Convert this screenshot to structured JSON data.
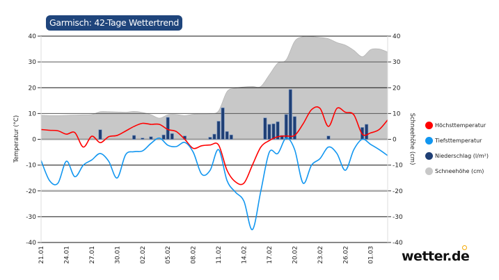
{
  "title": "Garmisch: 42-Tage Wettertrend",
  "brand": "wetter.de",
  "legend": [
    {
      "label": "Höchsttemperatur",
      "color": "#ff0000"
    },
    {
      "label": "Tiefsttemperatur",
      "color": "#1196f0"
    },
    {
      "label": "Niederschlag (l/m²)",
      "color": "#1f3f75"
    },
    {
      "label": "Schneehöhe (cm)",
      "color": "#c8c8c8"
    }
  ],
  "chart_data": {
    "type": "line",
    "ylabel": "Temperatur (°C)",
    "y2label": "Schneehöhe (cm)",
    "ylim": [
      -40,
      40
    ],
    "y2lim": [
      -40,
      40
    ],
    "yticks": [
      "40",
      "30",
      "20",
      "10",
      "0",
      "-10",
      "-20",
      "-30",
      "-40"
    ],
    "xtick_labels": [
      "21.01",
      "24.01",
      "27.01",
      "30.01",
      "02.02",
      "05.02",
      "08.02",
      "11.02",
      "14.02",
      "17.02",
      "20.02",
      "23.02",
      "26.02",
      "01.03"
    ],
    "x": [
      "21.01",
      "22.01",
      "23.01",
      "24.01",
      "25.01",
      "26.01",
      "27.01",
      "28.01",
      "29.01",
      "30.01",
      "31.01",
      "01.02",
      "02.02",
      "03.02",
      "04.02",
      "05.02",
      "06.02",
      "07.02",
      "08.02",
      "09.02",
      "10.02",
      "11.02",
      "12.02",
      "13.02",
      "14.02",
      "15.02",
      "16.02",
      "17.02",
      "18.02",
      "19.02",
      "20.02",
      "21.02",
      "22.02",
      "23.02",
      "24.02",
      "25.02",
      "26.02",
      "27.02",
      "28.02",
      "01.03",
      "02.03",
      "03.03"
    ],
    "series": [
      {
        "name": "Höchsttemperatur",
        "type": "line",
        "color": "#ff0000",
        "values": [
          3.8,
          3.5,
          3.3,
          2,
          2.6,
          -3,
          1.2,
          -1.3,
          1,
          1.5,
          3.2,
          5,
          6.2,
          5.8,
          5.8,
          3.8,
          3,
          0,
          -3.5,
          -2.5,
          -2.2,
          -2.2,
          -12,
          -16.5,
          -17,
          -10,
          -3,
          -0.5,
          1,
          1.3,
          1.5,
          6,
          11.5,
          12,
          5,
          12,
          10.5,
          9.5,
          2,
          2.5,
          3.8,
          7.5
        ]
      },
      {
        "name": "Tiefsttemperatur",
        "type": "line",
        "color": "#1196f0",
        "values": [
          -8.2,
          -16,
          -17,
          -8.5,
          -14.5,
          -10,
          -8,
          -5.5,
          -8.5,
          -15,
          -6,
          -4.8,
          -4.5,
          -1.6,
          0.5,
          -2.3,
          -2.8,
          -1.2,
          -5,
          -13.5,
          -12,
          -4,
          -16,
          -20.5,
          -24,
          -35,
          -20,
          -5,
          -5.5,
          0.5,
          -4,
          -17,
          -10,
          -7.5,
          -3,
          -5.5,
          -12,
          -4,
          0,
          -2,
          -4,
          -6.3
        ]
      },
      {
        "name": "Schneehöhe (cm)",
        "type": "area",
        "color": "#c8c8c8",
        "values": [
          9.3,
          9.2,
          9.2,
          9.3,
          9.4,
          9.5,
          9.6,
          10.7,
          10.7,
          10.6,
          10.5,
          10.8,
          10.4,
          9.5,
          8.2,
          9.5,
          9.6,
          9.2,
          9.7,
          9.8,
          9.9,
          11,
          18.5,
          19.8,
          20.3,
          20.5,
          20.5,
          25,
          29.5,
          30.8,
          38,
          39.8,
          39.8,
          39.5,
          39,
          37.5,
          36.5,
          34.5,
          32,
          34.8,
          35,
          33.8
        ]
      },
      {
        "name": "Niederschlag (l/m²)",
        "type": "bar",
        "color": "#1f3f75",
        "points": [
          {
            "time": "28.01 00:00",
            "value": 3.7
          },
          {
            "time": "01.02 00:00",
            "value": 1.5
          },
          {
            "time": "02.02 00:00",
            "value": 0.5
          },
          {
            "time": "03.02 00:00",
            "value": 1
          },
          {
            "time": "04.02 12:00",
            "value": 1.7
          },
          {
            "time": "05.02 00:00",
            "value": 8.5
          },
          {
            "time": "05.02 12:00",
            "value": 2.2
          },
          {
            "time": "07.02 00:00",
            "value": 1.3
          },
          {
            "time": "10.02 00:00",
            "value": 0.8
          },
          {
            "time": "10.02 12:00",
            "value": 2
          },
          {
            "time": "11.02 00:00",
            "value": 7
          },
          {
            "time": "11.02 12:00",
            "value": 12.2
          },
          {
            "time": "12.02 00:00",
            "value": 3
          },
          {
            "time": "12.02 12:00",
            "value": 1.7
          },
          {
            "time": "16.02 12:00",
            "value": 8.3
          },
          {
            "time": "17.02 00:00",
            "value": 5.8
          },
          {
            "time": "17.02 12:00",
            "value": 6
          },
          {
            "time": "18.02 00:00",
            "value": 6.8
          },
          {
            "time": "18.02 12:00",
            "value": 1.5
          },
          {
            "time": "19.02 00:00",
            "value": 9.6
          },
          {
            "time": "19.02 12:00",
            "value": 19.3
          },
          {
            "time": "20.02 00:00",
            "value": 8.8
          },
          {
            "time": "24.02 00:00",
            "value": 1.3
          },
          {
            "time": "28.02 00:00",
            "value": 4.6
          },
          {
            "time": "28.02 12:00",
            "value": 5.8
          }
        ]
      }
    ],
    "grid": true,
    "legend_position": "right"
  }
}
